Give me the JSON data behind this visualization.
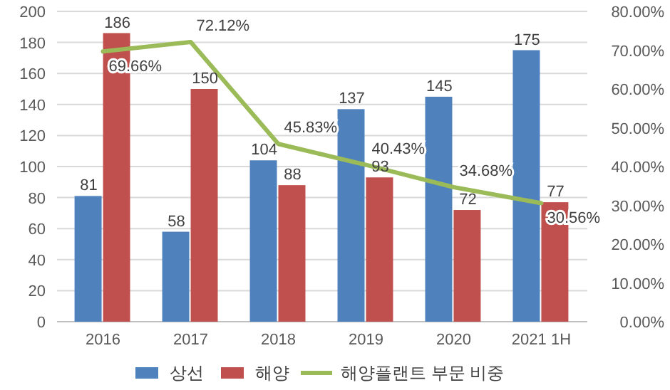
{
  "chart_data": {
    "type": "bar",
    "categories": [
      "2016",
      "2017",
      "2018",
      "2019",
      "2020",
      "2021 1H"
    ],
    "series": [
      {
        "name": "상선",
        "color": "#4f81bd",
        "values": [
          81,
          58,
          104,
          137,
          145,
          175
        ],
        "value_labels": [
          "81",
          "58",
          "104",
          "137",
          "145",
          "175"
        ]
      },
      {
        "name": "해양",
        "color": "#c0504d",
        "values": [
          186,
          150,
          88,
          93,
          72,
          77
        ],
        "value_labels": [
          "186",
          "150",
          "88",
          "93",
          "72",
          "77"
        ]
      },
      {
        "name": "해양플랜트 부문 비중",
        "type": "line",
        "axis": "y2",
        "color": "#9bbb59",
        "values": [
          69.66,
          72.12,
          45.83,
          40.43,
          34.68,
          30.56
        ],
        "value_labels": [
          "69.66%",
          "72.12%",
          "45.83%",
          "40.43%",
          "34.68%",
          "30.56%"
        ]
      }
    ],
    "ylim": [
      0,
      200
    ],
    "yticks": [
      0,
      20,
      40,
      60,
      80,
      100,
      120,
      140,
      160,
      180,
      200
    ],
    "y2lim": [
      0,
      80
    ],
    "y2ticks": [
      {
        "value": 0,
        "label": "0.00%"
      },
      {
        "value": 10,
        "label": "10.00%"
      },
      {
        "value": 20,
        "label": "20.00%"
      },
      {
        "value": 30,
        "label": "30.00%"
      },
      {
        "value": 40,
        "label": "40.00%"
      },
      {
        "value": 50,
        "label": "50.00%"
      },
      {
        "value": 60,
        "label": "60.00%"
      },
      {
        "value": 70,
        "label": "70.00%"
      },
      {
        "value": 80,
        "label": "80.00%"
      }
    ],
    "grid": "y",
    "legend": "bottom",
    "marker": "none",
    "line_style": "solid"
  }
}
